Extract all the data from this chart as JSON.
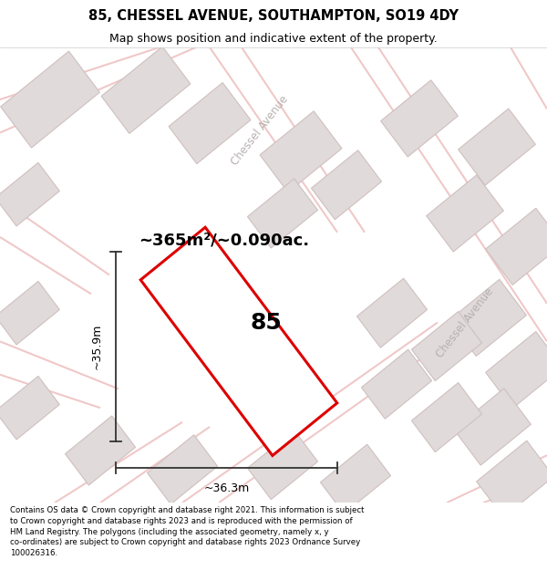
{
  "title": "85, CHESSEL AVENUE, SOUTHAMPTON, SO19 4DY",
  "subtitle": "Map shows position and indicative extent of the property.",
  "footer": "Contains OS data © Crown copyright and database right 2021. This information is subject to Crown copyright and database rights 2023 and is reproduced with the permission of HM Land Registry. The polygons (including the associated geometry, namely x, y co-ordinates) are subject to Crown copyright and database rights 2023 Ordnance Survey 100026316.",
  "area_text": "~365m²/~0.090ac.",
  "label": "85",
  "dim_height": "~35.9m",
  "dim_width": "~36.3m",
  "map_bg": "#faf8f8",
  "road_color": "#f0c8c8",
  "building_fill": "#e0dada",
  "building_edge": "#d0c0c0",
  "prop_fill": "#ffffff",
  "prop_edge": "#dd0000",
  "road_label_color": "#b8b0b0",
  "street_name": "Chessel Avenue",
  "title_fontsize": 10.5,
  "subtitle_fontsize": 9,
  "footer_fontsize": 6.2,
  "figsize": [
    6.0,
    6.25
  ],
  "dpi": 100
}
